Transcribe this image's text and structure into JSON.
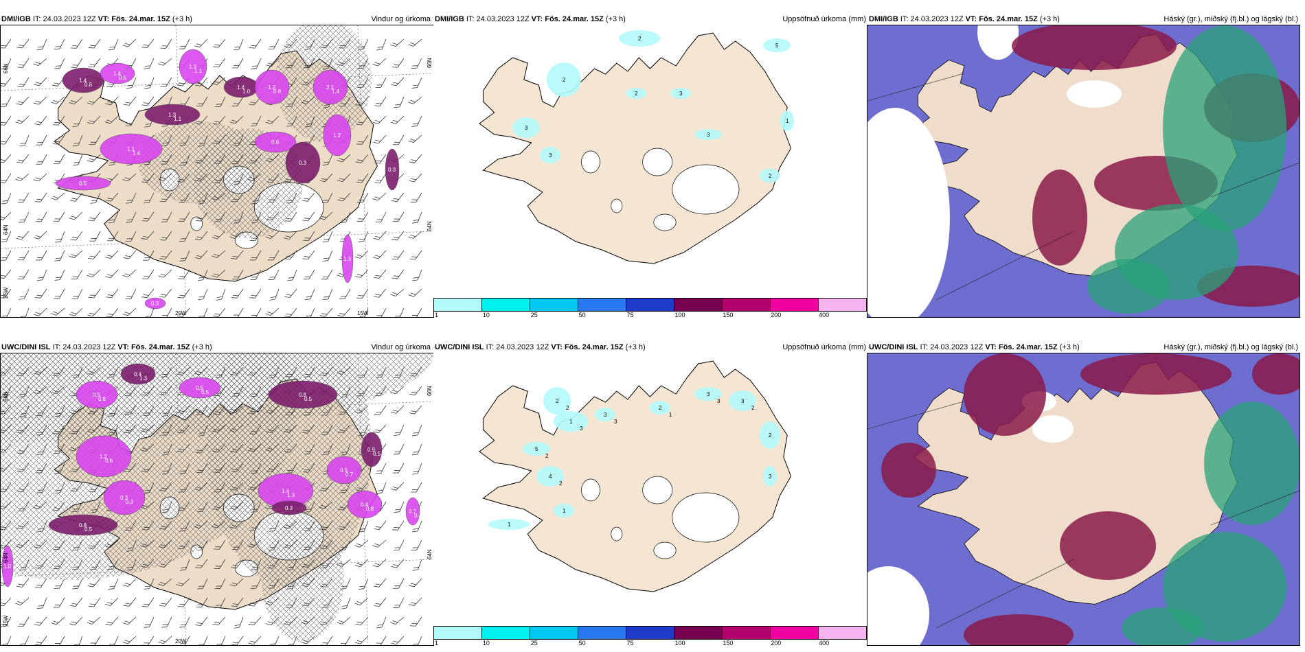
{
  "rows": [
    {
      "model": "DMI/IGB",
      "it_label": "IT:",
      "it_value": "24.03.2023 12Z",
      "vt_label": "VT:",
      "vt_value": "Fös. 24.mar. 15Z",
      "offset": "(+3 h)",
      "panels": {
        "wind": {
          "title": "Vindur og úrkoma"
        },
        "accum": {
          "title": "Uppsöfnuð úrkoma (mm)"
        },
        "cloud": {
          "title": "Háský (gr.), miðský (fj.bl.) og lágský (bl.)"
        }
      }
    },
    {
      "model": "UWC/DINI ISL",
      "it_label": "IT:",
      "it_value": "24.03.2023 12Z",
      "vt_label": "VT:",
      "vt_value": "Fös. 24.mar. 15Z",
      "offset": "(+3 h)",
      "panels": {
        "wind": {
          "title": "Vindur og úrkoma"
        },
        "accum": {
          "title": "Uppsöfnuð úrkoma (mm)"
        },
        "cloud": {
          "title": "Háský (gr.), miðský (fj.bl.) og lágský (bl.)"
        }
      }
    }
  ],
  "axis_labels": {
    "lat_66": "66N",
    "lat_64": "64N",
    "lon_25": "25W",
    "lon_20": "20W",
    "lon_15": "15W"
  },
  "colorbar": {
    "labels": [
      "1",
      "10",
      "25",
      "50",
      "75",
      "100",
      "150",
      "200",
      "400"
    ],
    "colors": [
      "#b3fafa",
      "#00f0f0",
      "#00c8f0",
      "#2878f0",
      "#1e3cc8",
      "#780050",
      "#b4006e",
      "#f000a0",
      "#f5b4f0"
    ]
  },
  "precip_values_top": [
    "1.4",
    "1.4",
    "1.3",
    "1.4",
    "1.2",
    "2.1",
    "1.3",
    "1.1",
    "0.6",
    "0.3",
    "1.2",
    "0.5",
    "0.3",
    "1.3",
    "0.3",
    "0.6",
    "0.5",
    "1.1",
    "1.0",
    "0.8",
    "1.4",
    "1.1",
    "1.4"
  ],
  "precip_values_bottom": [
    "0.4",
    "0.5",
    "0.5",
    "0.8",
    "1.2",
    "0.3",
    "0.8",
    "1.4",
    "0.5",
    "0.9",
    "0.4",
    "0.7",
    "0.3",
    "1.0",
    "1.3",
    "0.8",
    "0.5",
    "0.5",
    "0.6",
    "0.3",
    "0.5",
    "1.3",
    "0.7",
    "0.5",
    "0.8",
    "0.4"
  ],
  "accum_values_top": [
    "2",
    "2",
    "3",
    "3",
    "2",
    "3",
    "5",
    "1",
    "3",
    "2"
  ],
  "accum_values_bottom": [
    "2",
    "1",
    "5",
    "4",
    "3",
    "2",
    "3",
    "3",
    "2",
    "3",
    "1",
    "1",
    "2",
    "3",
    "2",
    "2",
    "3",
    "1",
    "3",
    "2"
  ],
  "colors": {
    "land": "#f5e6d3",
    "land_wind": "#eddcc8",
    "precip_light": "#d946ef",
    "precip_dark": "#7e1f6f",
    "cloud_high": "#8b1a4a",
    "cloud_mid": "#5555c8",
    "cloud_low": "#2aa37a"
  }
}
